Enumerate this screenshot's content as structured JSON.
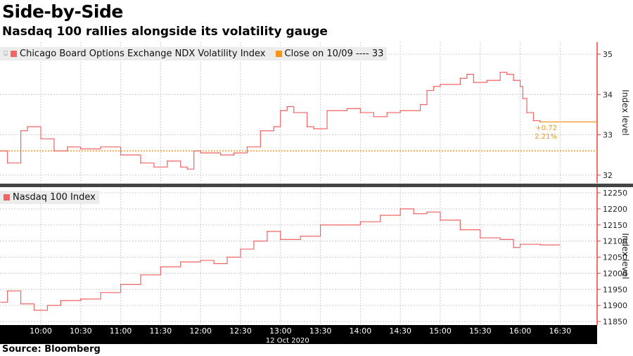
{
  "title": "Side-by-Side",
  "subtitle": "Nasdaq 100 rallies alongside its volatility gauge",
  "source": "Source: Bloomberg",
  "colors": {
    "series": "#f26464",
    "close": "#f0961e",
    "axis": "#f03c3c",
    "band": "#000000"
  },
  "chart_data": [
    {
      "type": "line",
      "title": "Chicago Board Options Exchange NDX Volatility Index",
      "ylabel": "Index level",
      "ylim": [
        31.95,
        35.3
      ],
      "yticks": [
        32,
        33,
        34,
        35
      ],
      "legend": [
        "Chicago Board Options Exchange NDX Volatility Index",
        "Close on 10/09 ---- 33"
      ],
      "close_value": 32.6,
      "annotation": {
        "change": "+0.72",
        "pct": "2.21%"
      },
      "x": [
        "09:30",
        "09:35",
        "09:45",
        "09:50",
        "10:00",
        "10:10",
        "10:20",
        "10:30",
        "10:45",
        "11:00",
        "11:15",
        "11:25",
        "11:35",
        "11:45",
        "11:50",
        "11:55",
        "12:00",
        "12:15",
        "12:25",
        "12:35",
        "12:45",
        "12:55",
        "13:00",
        "13:05",
        "13:10",
        "13:20",
        "13:25",
        "13:35",
        "13:50",
        "14:00",
        "14:10",
        "14:20",
        "14:30",
        "14:45",
        "14:50",
        "14:55",
        "15:00",
        "15:15",
        "15:20",
        "15:25",
        "15:35",
        "15:45",
        "15:50",
        "15:55",
        "16:00",
        "16:02",
        "16:05",
        "16:10",
        "16:15"
      ],
      "values": [
        32.6,
        32.3,
        33.1,
        33.2,
        32.9,
        32.6,
        32.7,
        32.65,
        32.7,
        32.5,
        32.3,
        32.2,
        32.35,
        32.2,
        32.15,
        32.6,
        32.55,
        32.5,
        32.55,
        32.7,
        33.1,
        33.2,
        33.6,
        33.7,
        33.55,
        33.2,
        33.15,
        33.6,
        33.65,
        33.55,
        33.45,
        33.55,
        33.6,
        33.75,
        34.1,
        34.2,
        34.25,
        34.4,
        34.5,
        34.3,
        34.35,
        34.55,
        34.5,
        34.35,
        34.2,
        33.9,
        33.55,
        33.35,
        33.32
      ]
    },
    {
      "type": "line",
      "title": "Nasdaq 100 Index",
      "ylabel": "Index level",
      "ylim": [
        11840,
        12265
      ],
      "yticks": [
        11850,
        11900,
        11950,
        12000,
        12050,
        12100,
        12150,
        12200,
        12250
      ],
      "legend": [
        "Nasdaq 100 Index"
      ],
      "x": [
        "09:30",
        "09:35",
        "09:45",
        "09:55",
        "10:05",
        "10:15",
        "10:30",
        "10:45",
        "11:00",
        "11:15",
        "11:30",
        "11:45",
        "12:00",
        "12:10",
        "12:20",
        "12:30",
        "12:40",
        "12:50",
        "13:00",
        "13:15",
        "13:30",
        "13:45",
        "14:00",
        "14:15",
        "14:30",
        "14:40",
        "14:50",
        "15:00",
        "15:15",
        "15:30",
        "15:45",
        "15:55",
        "16:00",
        "16:15"
      ],
      "values": [
        11910,
        11945,
        11905,
        11885,
        11900,
        11915,
        11920,
        11940,
        11965,
        11995,
        12020,
        12035,
        12040,
        12030,
        12050,
        12075,
        12100,
        12130,
        12105,
        12115,
        12150,
        12150,
        12160,
        12180,
        12200,
        12185,
        12190,
        12165,
        12135,
        12110,
        12105,
        12080,
        12090,
        12088
      ]
    }
  ],
  "xaxis": {
    "ticks": [
      "10:00",
      "10:30",
      "11:00",
      "11:30",
      "12:00",
      "12:30",
      "13:00",
      "13:30",
      "14:00",
      "14:30",
      "15:00",
      "15:30",
      "16:00",
      "16:30"
    ],
    "date": "12 Oct 2020"
  }
}
